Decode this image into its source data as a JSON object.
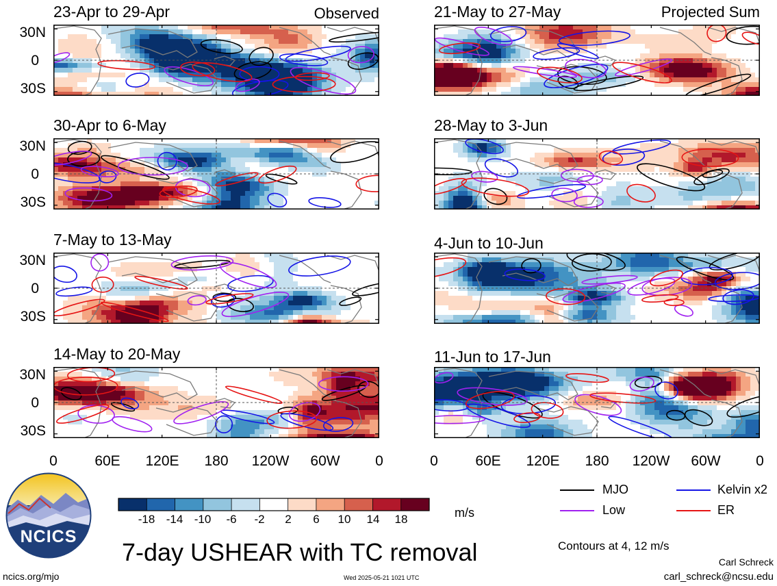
{
  "chart_data": [
    {
      "type": "heatmap",
      "title": "23-Apr to 29-Apr",
      "tag": "Observed"
    },
    {
      "type": "heatmap",
      "title": "30-Apr to 6-May",
      "tag": ""
    },
    {
      "type": "heatmap",
      "title": "7-May to 13-May",
      "tag": ""
    },
    {
      "type": "heatmap",
      "title": "14-May to 20-May",
      "tag": ""
    },
    {
      "type": "heatmap",
      "title": "21-May to 27-May",
      "tag": "Projected Sum"
    },
    {
      "type": "heatmap",
      "title": "28-May to 3-Jun",
      "tag": ""
    },
    {
      "type": "heatmap",
      "title": "4-Jun to 10-Jun",
      "tag": ""
    },
    {
      "type": "heatmap",
      "title": "11-Jun to 17-Jun",
      "tag": ""
    }
  ],
  "axes": {
    "y_ticks": [
      "30N",
      "0",
      "30S"
    ],
    "x_ticks": [
      "0",
      "60E",
      "120E",
      "180",
      "120W",
      "60W",
      "0"
    ],
    "lat_range": [
      -40,
      40
    ],
    "lon_range": [
      0,
      360
    ]
  },
  "colorbar": {
    "ticks": [
      "-18",
      "-14",
      "-10",
      "-6",
      "-2",
      "2",
      "6",
      "10",
      "14",
      "18"
    ],
    "unit": "m/s",
    "colors": [
      "#08306b",
      "#2166ac",
      "#4393c3",
      "#92c5de",
      "#c6e0ef",
      "#ffffff",
      "#fddbc7",
      "#f4a582",
      "#d6604d",
      "#b2182b",
      "#67001f"
    ]
  },
  "legend": [
    {
      "label": "MJO",
      "color": "#000000"
    },
    {
      "label": "Kelvin x2",
      "color": "#1414e6"
    },
    {
      "label": "Low",
      "color": "#a020f0"
    },
    {
      "label": "ER",
      "color": "#e61414"
    }
  ],
  "title": "7-day USHEAR with TC removal",
  "contours_note": "Contours at 4, 12 m/s",
  "logo_text": "NCICS",
  "footer": {
    "url": "ncics.org/mjo",
    "timestamp": "Wed 2025-05-21 1021 UTC",
    "author": "Carl Schreck",
    "email": "carl_schreck@ncsu.edu"
  }
}
